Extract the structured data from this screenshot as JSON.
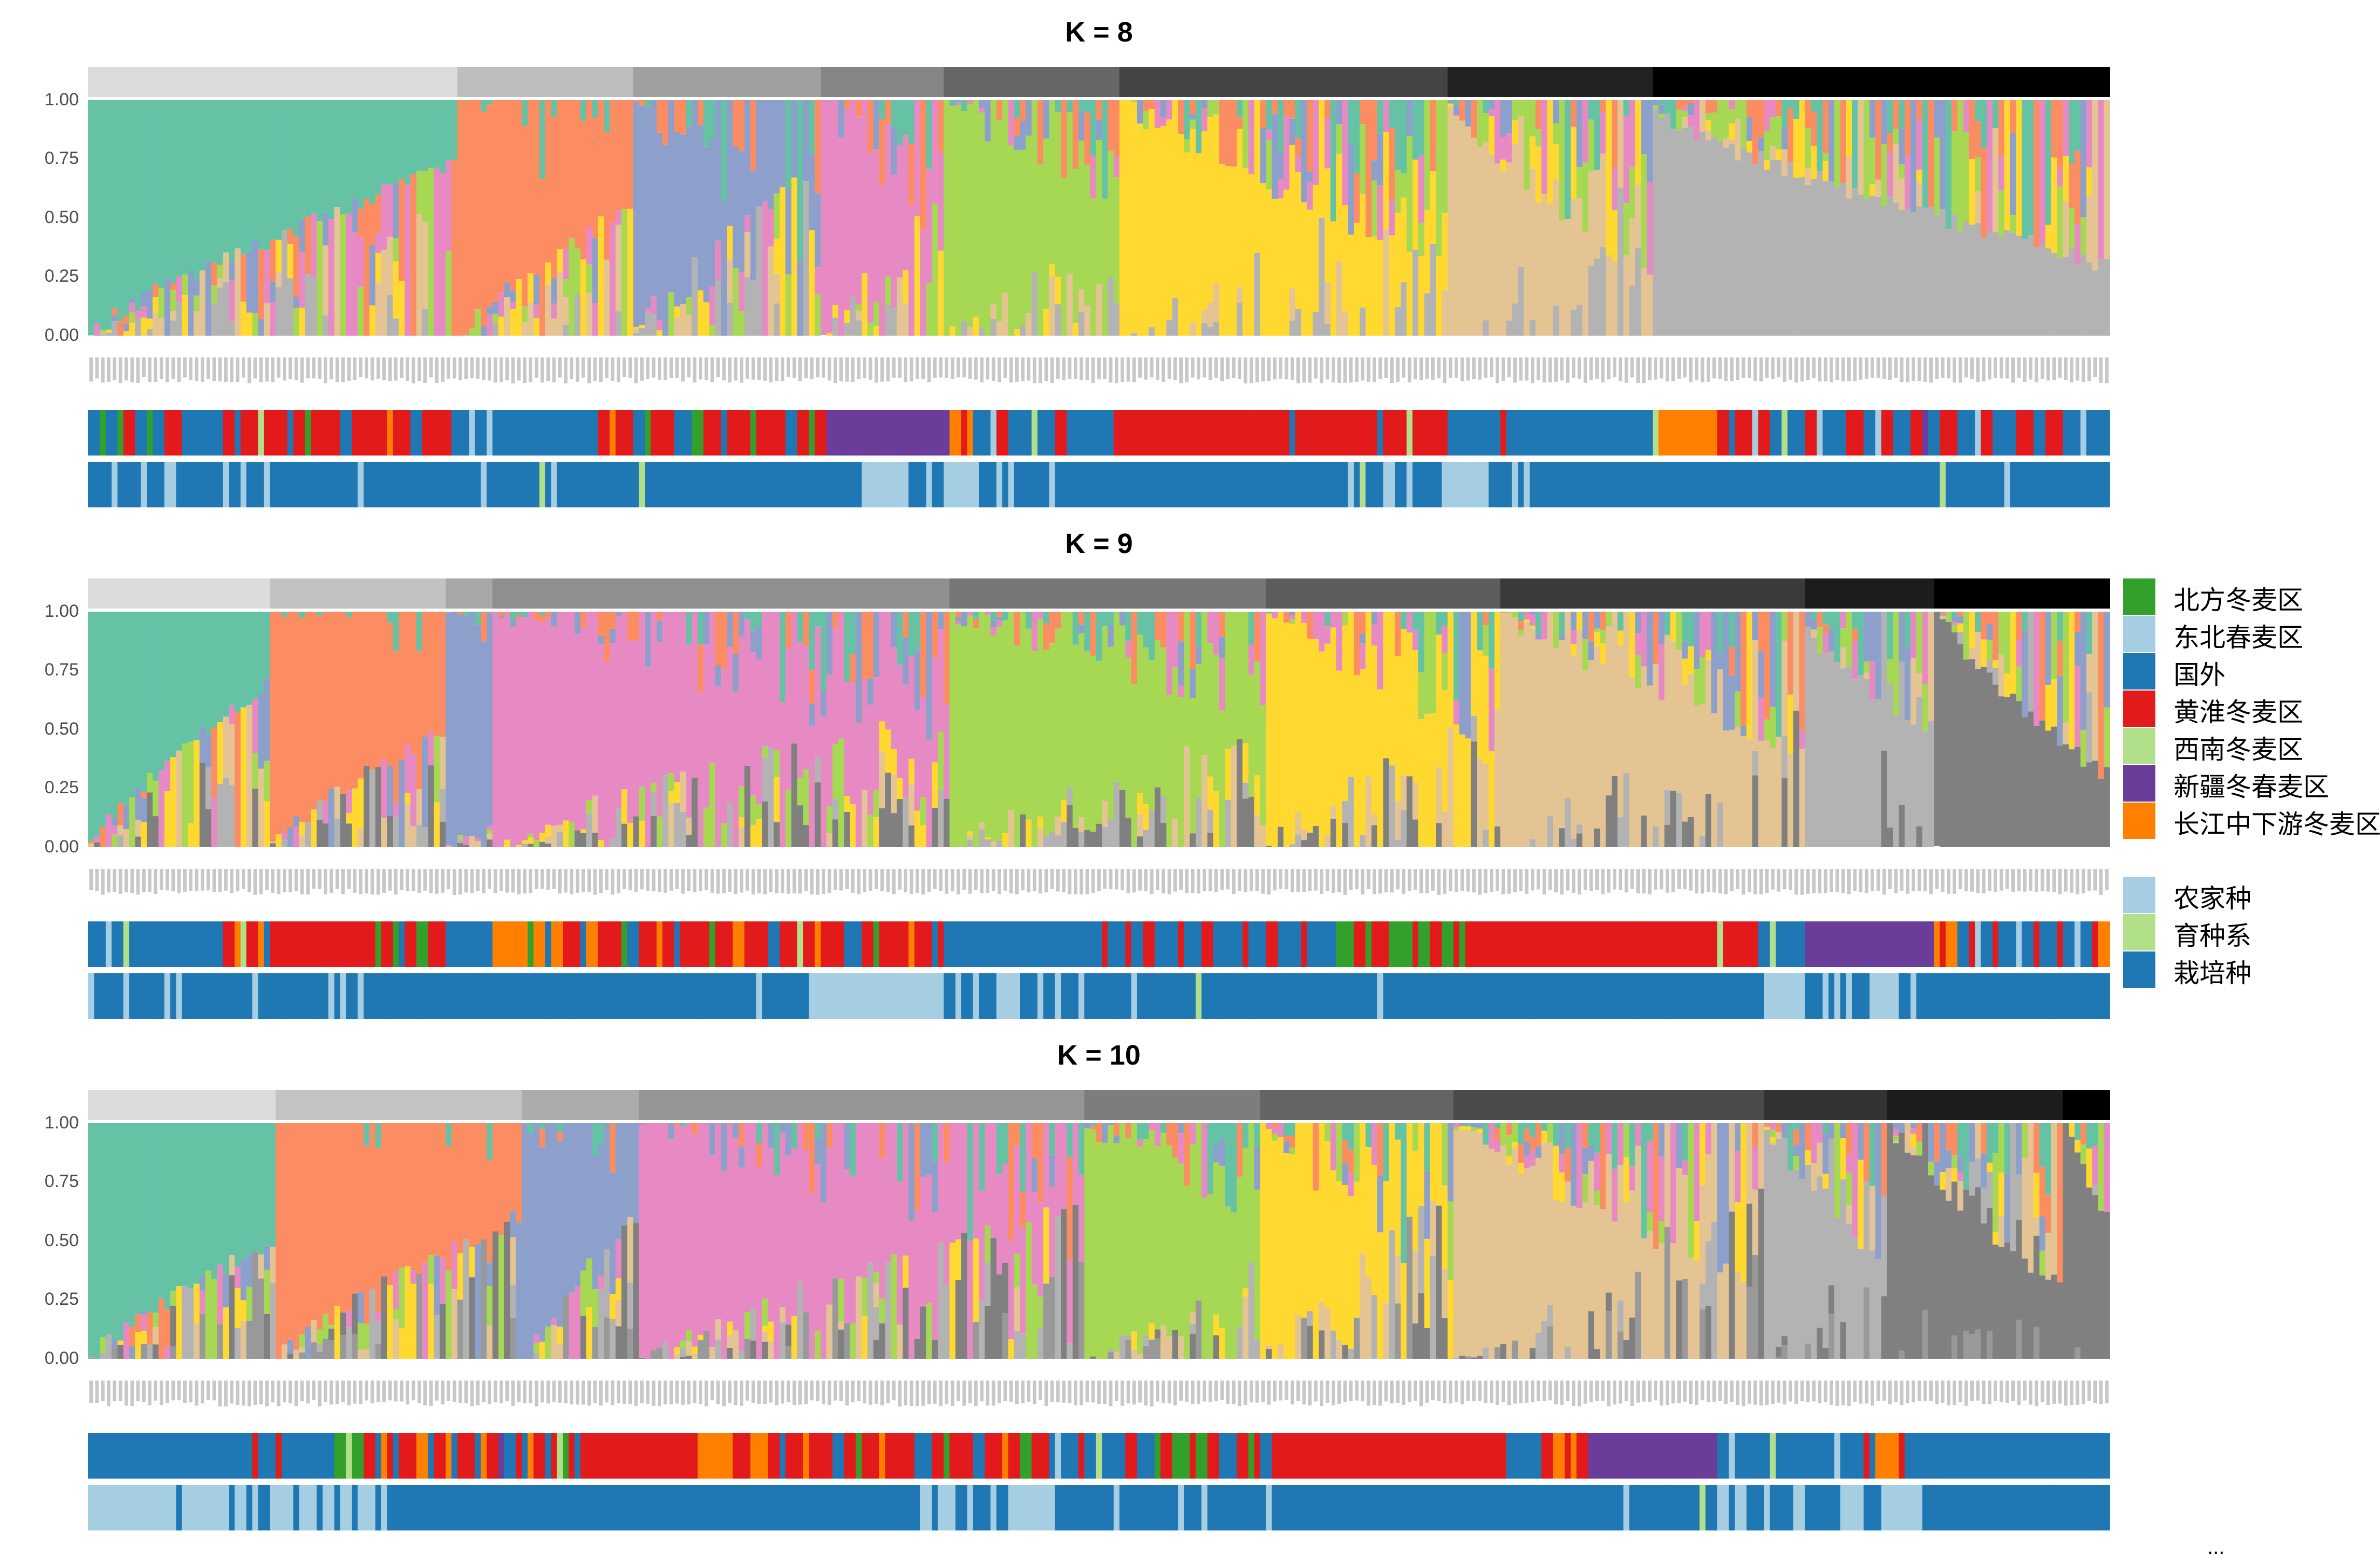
{
  "cluster_colors": [
    "#66c2a5",
    "#fc8d62",
    "#8da0cb",
    "#e78ac3",
    "#a6d854",
    "#ffd92f",
    "#e5c494",
    "#b3b3b3",
    "#808080",
    "#999999"
  ],
  "region_legend": [
    {
      "code": "N",
      "label": "北方冬麦区",
      "color": "#33a02c"
    },
    {
      "code": "E",
      "label": "东北春麦区",
      "color": "#a6cee3"
    },
    {
      "code": "F",
      "label": "国外",
      "color": "#1f78b4"
    },
    {
      "code": "H",
      "label": "黄淮冬麦区",
      "color": "#e31a1c"
    },
    {
      "code": "S",
      "label": "西南冬麦区",
      "color": "#b2df8a"
    },
    {
      "code": "X",
      "label": "新疆冬春麦区",
      "color": "#6a3d9a"
    },
    {
      "code": "C",
      "label": "长江中下游冬麦区",
      "color": "#ff7f00"
    }
  ],
  "type_legend": [
    {
      "code": "L",
      "label": "农家种",
      "color": "#a6cee3"
    },
    {
      "code": "B",
      "label": "育种系",
      "color": "#b2df8a"
    },
    {
      "code": "P",
      "label": "栽培种",
      "color": "#1f78b4"
    }
  ],
  "more_indicator": "...",
  "chart_data": [
    {
      "type": "bar",
      "stacked": true,
      "title": "K = 8",
      "k": 8,
      "n_samples": 345,
      "ylim": [
        0,
        1
      ],
      "yticks": [
        "0.00",
        "0.25",
        "0.50",
        "0.75",
        "1.00"
      ],
      "group_shades": [
        "#dcdcdc",
        "#bebebe",
        "#a0a0a0",
        "#858585",
        "#666666",
        "#444444",
        "#222222",
        "#000000"
      ],
      "groups": [
        {
          "n": 63,
          "dominant": 0,
          "max": 1.0,
          "min": 0.28
        },
        {
          "n": 30,
          "dominant": 1,
          "max": 1.0,
          "min": 0.45
        },
        {
          "n": 32,
          "dominant": 2,
          "max": 0.95,
          "min": 0.3
        },
        {
          "n": 21,
          "dominant": 3,
          "max": 1.0,
          "min": 0.4
        },
        {
          "n": 30,
          "dominant": 4,
          "max": 1.0,
          "min": 0.55
        },
        {
          "n": 56,
          "dominant": 5,
          "max": 1.0,
          "min": 0.3
        },
        {
          "n": 35,
          "dominant": 6,
          "max": 0.95,
          "min": 0.25
        },
        {
          "n": 78,
          "dominant": 7,
          "max": 0.95,
          "min": 0.3
        }
      ],
      "region_runs": "F2 N1 F2 N1 H2 F2 N1 F2 H3 F7 H2 F1 H3 S1 H4 F1 H2 N1 H5 F2 H6 C1 H3 F2 H5 F3 E1 F2 E1 F2 F16 H2 C1 H3 F2 N1 H4 F3 N2 H3 F1 H4 N1 H5 F2 H2 N1 H2 X21 C2 H1 C1 F3 E1 H2 F4 S1 F3 H2 F8 H30 F1 H14 F1 H4 S1 H6 F9 H1 F25 S1 C10 H2 F1 H3 E1 H2 F2 S1 F3 H2 E1 F4 H3 F2 E1 H2 F3 H2 X1 F2 H3 F3 E1 H2 F4 H3 F2 H3 F3 E1 F4",
      "type_runs": "P4 L1 P4 L1 P3 L2 P8 L1 P2 L1 P3 L1 P15 L1 P20 L1 P9 B1 P1 L1 P14 B1 P37 L8 P3 L1 P2 L6 P3 L1 P1 L1 P6 L1 P50 L1 P1 B1 P3 L2 P2 L1 P5 L8 P4 L1 P1 L1 P70 B1 P10 L1"
    },
    {
      "type": "bar",
      "stacked": true,
      "title": "K = 9",
      "k": 9,
      "n_samples": 345,
      "ylim": [
        0,
        1
      ],
      "yticks": [
        "0.00",
        "0.25",
        "0.50",
        "0.75",
        "1.00"
      ],
      "group_shades": [
        "#dcdcdc",
        "#c2c2c2",
        "#a8a8a8",
        "#8f8f8f",
        "#767676",
        "#5c5c5c",
        "#3a3a3a",
        "#1c1c1c",
        "#000000"
      ],
      "groups": [
        {
          "n": 31,
          "dominant": 0,
          "max": 1.0,
          "min": 0.3
        },
        {
          "n": 30,
          "dominant": 1,
          "max": 1.0,
          "min": 0.5
        },
        {
          "n": 8,
          "dominant": 2,
          "max": 1.0,
          "min": 0.9
        },
        {
          "n": 78,
          "dominant": 3,
          "max": 1.0,
          "min": 0.4
        },
        {
          "n": 54,
          "dominant": 4,
          "max": 1.0,
          "min": 0.5
        },
        {
          "n": 40,
          "dominant": 5,
          "max": 1.0,
          "min": 0.4
        },
        {
          "n": 52,
          "dominant": 6,
          "max": 1.0,
          "min": 0.4
        },
        {
          "n": 22,
          "dominant": 7,
          "max": 0.9,
          "min": 0.5
        },
        {
          "n": 30,
          "dominant": 8,
          "max": 1.0,
          "min": 0.3
        }
      ],
      "region_runs": "F3 E1 F2 S1 F16 H2 C1 S1 H2 C1 F1 H18 N1 H2 N1 F1 H2 N2 H3 F8 C6 N1 C2 F1 C2 H3 F1 C2 H4 N1 F2 H3 C1 H2 F1 H5 N1 H3 C2 H4 F2 H3 S1 H2 C1 H4 F3 H2 N1 H5 C1 H3 F1 H1 F27 H1 F3 H1 F2 H2 F4 H1 F3 H2 F5 H1 F3 H2 F4 H1 F5 N3 H2 N1 H3 N4 H1 N2 H2 N2 H1 N1 H3 H40 S1 H6 F2 S1 F5 X22 C1 H1 C2 F2 H1 E1 F2 H1 F3 E1 F2 H1 F3 H1 F2 E1 F2 H1 C3",
      "type_runs": "L1 P5 L1 P6 L1 P1 L1 P12 L1 P12 L1 P1 L1 P2 L1 P67 L1 P8 L23 P2 L1 P2 L1 P3 L4 P3 L1 P2 L1 P3 L1 P8 L1 P10 B1 P30 L1 P65 L7 P3 L1 P1 L1 P1 L1 P3 L5 P2 L1 P1"
    },
    {
      "type": "bar",
      "stacked": true,
      "title": "K = 10",
      "k": 10,
      "n_samples": 345,
      "ylim": [
        0,
        1
      ],
      "yticks": [
        "0.00",
        "0.25",
        "0.50",
        "0.75",
        "1.00"
      ],
      "group_shades": [
        "#dcdcdc",
        "#c4c4c4",
        "#acacac",
        "#959595",
        "#7d7d7d",
        "#646464",
        "#4a4a4a",
        "#333333",
        "#1c1c1c",
        "#000000"
      ],
      "groups": [
        {
          "n": 32,
          "dominant": 0,
          "max": 1.0,
          "min": 0.5
        },
        {
          "n": 42,
          "dominant": 1,
          "max": 1.0,
          "min": 0.4
        },
        {
          "n": 20,
          "dominant": 2,
          "max": 1.0,
          "min": 0.4
        },
        {
          "n": 76,
          "dominant": 3,
          "max": 1.0,
          "min": 0.35
        },
        {
          "n": 30,
          "dominant": 4,
          "max": 1.0,
          "min": 0.6
        },
        {
          "n": 33,
          "dominant": 5,
          "max": 1.0,
          "min": 0.3
        },
        {
          "n": 53,
          "dominant": 6,
          "max": 1.0,
          "min": 0.3
        },
        {
          "n": 21,
          "dominant": 7,
          "max": 1.0,
          "min": 0.4
        },
        {
          "n": 30,
          "dominant": 8,
          "max": 1.0,
          "min": 0.3
        },
        {
          "n": 8,
          "dominant": 8,
          "max": 1.0,
          "min": 0.6
        }
      ],
      "region_runs": "F28 H1 F3 H1 F9 N2 S1 N2 H2 F1 C1 H1 F1 H3 C2 F1 H2 C1 F1 H3 F1 C1 H2 X1 F2 H1 F1 C1 H2 F1 H1 S1 N1 H1 F1 H20 C6 H3 C3 H2 F1 H3 C1 H4 F2 H2 N1 H3 C1 H5 F3 H2 N1 H4 F2 H3 C1 H2 N2 H3 F1 E1 F3 H1 F2 S1 F4 H2 F3 N1 H2 N3 H1 N2 H2 F3 H2 N1 H1 F2 H40 F6 H2 C2 H1 C1 H2 X22 F2 E1 F6 S1 F10 E1 F4 H1 F1 C4 H1 F8",
      "type_runs": "L15 P1 L8 P1 L2 P1 L1 P2 L4 P1 L3 P1 L2 P1 L2 P1 L3 P1 L1 P91 L2 P1 L3 P2 L1 P3 L1 P2 L8 P10 L1 P10 L1 P3 L1 P10 L1 P60 L1 P12 B1 P2 L2 P1 L2 P3 L1 P4 L2 P6 L4 P3 L7 P1"
    }
  ]
}
